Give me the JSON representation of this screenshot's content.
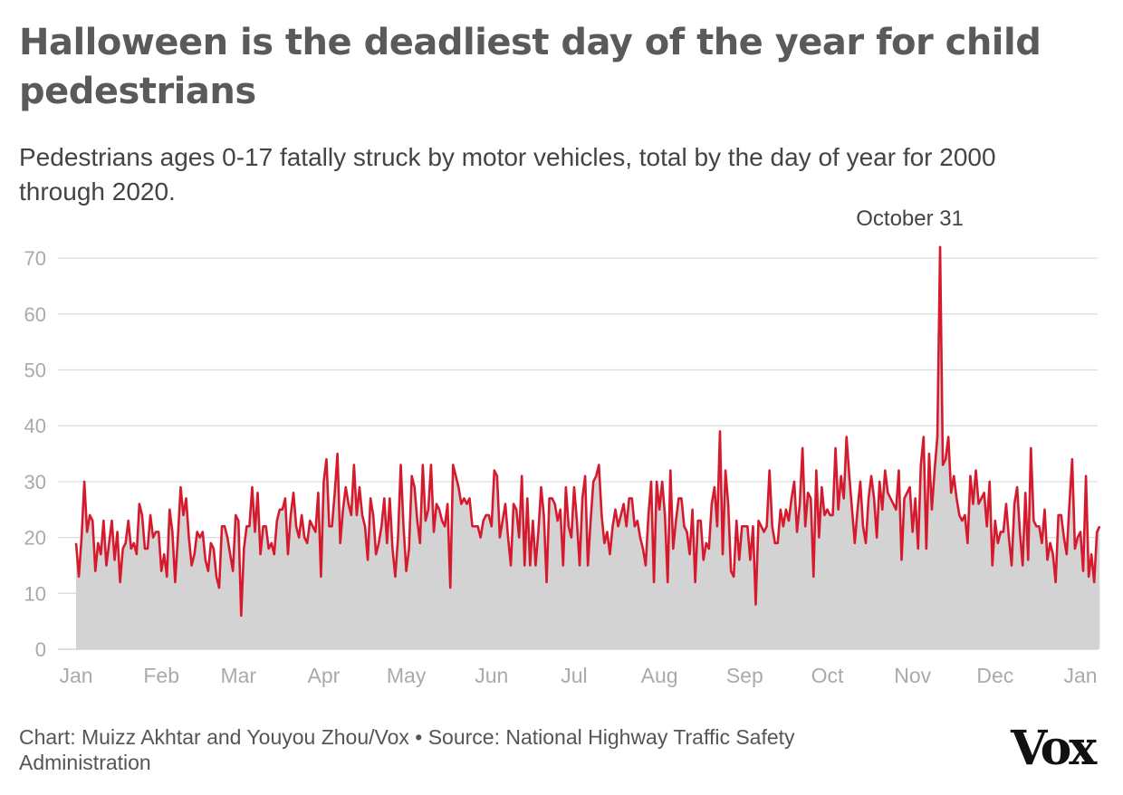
{
  "header": {
    "title": "Halloween is the deadliest day of the year for child pedestrians",
    "subtitle": "Pedestrians ages 0-17 fatally struck by motor vehicles, total by the day of year for 2000 through 2020."
  },
  "footer": {
    "credit": "Chart: Muizz Akhtar and Youyou Zhou/Vox • Source: National Highway Traffic Safety Administration",
    "logo": "Vox"
  },
  "colors": {
    "line": "#d61a2e",
    "area": "#d3d3d3",
    "grid": "#dddddd"
  },
  "chart_data": {
    "type": "area",
    "title": "Halloween is the deadliest day of the year for child pedestrians",
    "subtitle": "Pedestrians ages 0-17 fatally struck by motor vehicles, total by the day of year for 2000 through 2020.",
    "xlabel": "",
    "ylabel": "",
    "x_unit": "day of year",
    "ylim": [
      0,
      72
    ],
    "yticks": [
      0,
      10,
      20,
      30,
      40,
      50,
      60,
      70
    ],
    "xticks": [
      {
        "day": 1,
        "label": "Jan"
      },
      {
        "day": 32,
        "label": "Feb"
      },
      {
        "day": 60,
        "label": "Mar"
      },
      {
        "day": 91,
        "label": "Apr"
      },
      {
        "day": 121,
        "label": "May"
      },
      {
        "day": 152,
        "label": "Jun"
      },
      {
        "day": 182,
        "label": "Jul"
      },
      {
        "day": 213,
        "label": "Aug"
      },
      {
        "day": 244,
        "label": "Sep"
      },
      {
        "day": 274,
        "label": "Oct"
      },
      {
        "day": 305,
        "label": "Nov"
      },
      {
        "day": 335,
        "label": "Dec"
      },
      {
        "day": 366,
        "label": "Jan"
      }
    ],
    "grid": true,
    "annotation": {
      "day": 304,
      "value": 72,
      "label": "October 31"
    },
    "series": [
      {
        "values": [
          19,
          13,
          20,
          30,
          21,
          24,
          23,
          14,
          19,
          17,
          23,
          15,
          19,
          23,
          16,
          21,
          12,
          18,
          19,
          23,
          18,
          19,
          17,
          26,
          24,
          18,
          18,
          24,
          20,
          21,
          21,
          14,
          17,
          13,
          25,
          21,
          12,
          20,
          29,
          24,
          27,
          20,
          15,
          17,
          21,
          20,
          21,
          16,
          14,
          19,
          18,
          13,
          11,
          22,
          22,
          20,
          17,
          14,
          24,
          23,
          6,
          18,
          22,
          22,
          29,
          21,
          28,
          17,
          22,
          22,
          18,
          19,
          17,
          23,
          25,
          25,
          27,
          17,
          24,
          28,
          22,
          20,
          24,
          20,
          19,
          23,
          22,
          21,
          28,
          13,
          30,
          34,
          22,
          22,
          28,
          35,
          19,
          25,
          29,
          26,
          24,
          33,
          24,
          29,
          24,
          22,
          16,
          27,
          24,
          17,
          19,
          22,
          27,
          19,
          27,
          18,
          13,
          20,
          33,
          22,
          14,
          18,
          31,
          29,
          23,
          19,
          33,
          23,
          25,
          33,
          21,
          26,
          25,
          23,
          22,
          26,
          11,
          33,
          31,
          29,
          26,
          27,
          26,
          27,
          22,
          22,
          22,
          20,
          23,
          24,
          24,
          22,
          32,
          31,
          20,
          23,
          26,
          20,
          15,
          26,
          25,
          20,
          31,
          15,
          27,
          15,
          23,
          15,
          21,
          29,
          24,
          12,
          27,
          27,
          26,
          23,
          25,
          15,
          29,
          22,
          20,
          29,
          23,
          15,
          27,
          31,
          15,
          23,
          30,
          31,
          33,
          24,
          19,
          21,
          17,
          22,
          25,
          22,
          24,
          26,
          22,
          27,
          27,
          22,
          23,
          20,
          18,
          15,
          24,
          30,
          12,
          30,
          25,
          30,
          24,
          12,
          32,
          18,
          23,
          27,
          27,
          22,
          21,
          17,
          25,
          12,
          23,
          23,
          16,
          19,
          18,
          26,
          29,
          22,
          39,
          17,
          32,
          26,
          14,
          13,
          23,
          16,
          22,
          22,
          22,
          16,
          22,
          8,
          23,
          22,
          21,
          22,
          32,
          22,
          19,
          19,
          25,
          22,
          25,
          23,
          27,
          30,
          21,
          26,
          36,
          22,
          28,
          27,
          13,
          32,
          20,
          29,
          24,
          25,
          24,
          24,
          36,
          25,
          31,
          27,
          38,
          31,
          25,
          19,
          25,
          30,
          22,
          19,
          27,
          31,
          27,
          20,
          30,
          25,
          32,
          28,
          27,
          26,
          25,
          32,
          16,
          27,
          28,
          29,
          21,
          27,
          18,
          33,
          38,
          18,
          35,
          25,
          32,
          38,
          72,
          33,
          34,
          38,
          28,
          31,
          27,
          24,
          23,
          24,
          19,
          31,
          26,
          32,
          26,
          27,
          28,
          22,
          30,
          15,
          23,
          19,
          21,
          21,
          26,
          20,
          15,
          26,
          29,
          21,
          15,
          28,
          16,
          36,
          23,
          22,
          22,
          19,
          25,
          16,
          19,
          17,
          12,
          24,
          24,
          20,
          17,
          26,
          34,
          18,
          20,
          21,
          14,
          31,
          13,
          17,
          12,
          21,
          22
        ]
      }
    ]
  }
}
